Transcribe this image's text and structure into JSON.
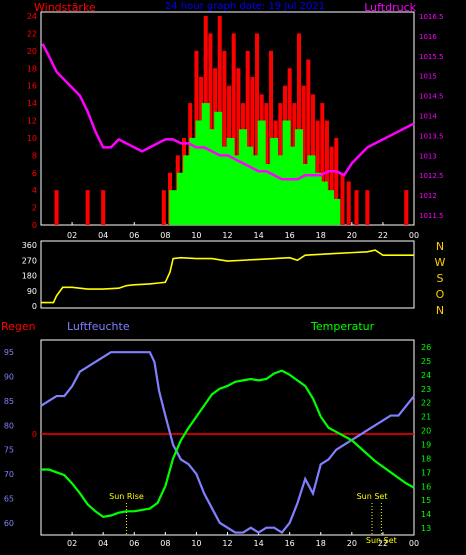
{
  "header": {
    "left_title": "Windstärke",
    "center_title": "24 hour graph date: 19 Jul 2021",
    "right_title": "Luftdruck"
  },
  "colors": {
    "background": "#000000",
    "frame": "#ffffff",
    "wind_gust": "#ff0000",
    "wind_avg": "#00ff00",
    "pressure": "#ff00ff",
    "direction": "#ffff00",
    "humidity": "#8080ff",
    "temperature": "#00ff00",
    "rain": "#ff0000",
    "dir_letters": "#ffcc00",
    "sun_marker": "#ffff00",
    "title_blue": "#0000ff"
  },
  "chart_data": [
    {
      "type": "bar",
      "title": "Windstärke / Luftdruck",
      "x_ticks": [
        "02",
        "04",
        "06",
        "08",
        "10",
        "12",
        "14",
        "16",
        "18",
        "20",
        "22",
        "00"
      ],
      "left_axis": {
        "label": "Windstärke",
        "ticks": [
          0,
          2,
          4,
          6,
          8,
          10,
          12,
          14,
          16,
          18,
          20,
          22,
          24
        ],
        "range": [
          0,
          24
        ]
      },
      "right_axis": {
        "label": "Luftdruck",
        "ticks": [
          "1011.5",
          "1012",
          "1012.5",
          "1013",
          "1013.5",
          "1014",
          "1014.5",
          "1015",
          "1015.5",
          "1016",
          "1016.5"
        ],
        "range": [
          1011.25,
          1016.5
        ]
      },
      "series": [
        {
          "name": "Luftdruck",
          "kind": "line",
          "x": [
            0.1,
            0.5,
            1,
            1.5,
            2,
            2.5,
            3,
            3.5,
            4,
            4.5,
            5,
            5.5,
            6,
            6.5,
            7,
            7.5,
            8,
            8.5,
            9,
            9.5,
            10,
            10.5,
            11,
            11.5,
            12,
            12.5,
            13,
            13.5,
            14,
            14.5,
            15,
            15.5,
            16,
            16.5,
            17,
            17.5,
            18,
            18.5,
            19,
            19.5,
            20,
            20.5,
            21,
            21.5,
            22,
            22.5,
            23,
            23.5,
            24
          ],
          "y": [
            1015.8,
            1015.5,
            1015.1,
            1014.9,
            1014.7,
            1014.5,
            1014.1,
            1013.6,
            1013.2,
            1013.2,
            1013.4,
            1013.3,
            1013.2,
            1013.1,
            1013.2,
            1013.3,
            1013.4,
            1013.4,
            1013.3,
            1013.3,
            1013.2,
            1013.2,
            1013.1,
            1013.0,
            1013.0,
            1012.9,
            1012.8,
            1012.7,
            1012.6,
            1012.6,
            1012.5,
            1012.4,
            1012.4,
            1012.4,
            1012.5,
            1012.5,
            1012.5,
            1012.6,
            1012.6,
            1012.5,
            1012.8,
            1013.0,
            1013.2,
            1013.3,
            1013.4,
            1013.5,
            1013.6,
            1013.7,
            1013.8
          ]
        },
        {
          "name": "Windspitzen",
          "kind": "bars",
          "x": [
            1,
            3,
            4,
            7.9,
            8.3,
            8.8,
            9.2,
            9.6,
            10.0,
            10.3,
            10.6,
            10.9,
            11.2,
            11.5,
            11.8,
            12.1,
            12.4,
            12.7,
            13.0,
            13.3,
            13.6,
            13.9,
            14.2,
            14.5,
            14.8,
            15.1,
            15.4,
            15.7,
            16.0,
            16.3,
            16.6,
            16.9,
            17.2,
            17.5,
            17.8,
            18.1,
            18.4,
            18.7,
            19.0,
            19.4,
            19.8,
            20.3,
            21.0,
            23.5
          ],
          "y": [
            4,
            4,
            4,
            4,
            6,
            8,
            10,
            14,
            20,
            17,
            24,
            22,
            18,
            24,
            20,
            16,
            22,
            18,
            14,
            20,
            17,
            22,
            15,
            14,
            20,
            12,
            14,
            16,
            18,
            14,
            22,
            16,
            19,
            15,
            12,
            14,
            12,
            9,
            10,
            6,
            5,
            4,
            4,
            4
          ]
        },
        {
          "name": "Windmittel",
          "kind": "bars",
          "x": [
            8.5,
            9.0,
            9.4,
            9.8,
            10.2,
            10.6,
            11.0,
            11.4,
            11.8,
            12.2,
            12.6,
            13.0,
            13.4,
            13.8,
            14.2,
            14.6,
            15.0,
            15.4,
            15.8,
            16.2,
            16.6,
            17.0,
            17.4,
            17.8,
            18.2,
            18.6,
            19.0
          ],
          "y": [
            4,
            6,
            8,
            10,
            12,
            14,
            11,
            13,
            9,
            10,
            8,
            11,
            9,
            8,
            12,
            7,
            10,
            8,
            12,
            9,
            11,
            7,
            8,
            6,
            5,
            4,
            3
          ]
        }
      ]
    },
    {
      "type": "line",
      "title": "Windrichtung",
      "left_axis": {
        "ticks": [
          0,
          90,
          180,
          270,
          360
        ],
        "range": [
          0,
          360
        ]
      },
      "direction_letters": [
        "N",
        "W",
        "S",
        "O",
        "N"
      ],
      "series": [
        {
          "name": "Windrichtung",
          "x": [
            0,
            0.8,
            1,
            1.4,
            2,
            3,
            4,
            5,
            5.5,
            6,
            7,
            7.5,
            8,
            8.3,
            8.5,
            9,
            10,
            11,
            12,
            13,
            14,
            15,
            16,
            16.5,
            17,
            18,
            19,
            20,
            21,
            21.5,
            22,
            23,
            24
          ],
          "y": [
            20,
            20,
            60,
            110,
            110,
            100,
            100,
            105,
            120,
            125,
            130,
            135,
            140,
            200,
            280,
            285,
            280,
            280,
            265,
            270,
            275,
            280,
            285,
            270,
            300,
            305,
            310,
            315,
            320,
            330,
            300,
            300,
            300
          ]
        }
      ]
    },
    {
      "type": "line",
      "title": "Regen / Luftfeuchte / Temperatur",
      "labels": {
        "rain": "Regen",
        "humidity": "Luftfeuchte",
        "temperature": "Temperatur"
      },
      "left_axis_rain": {
        "ticks": [
          "0"
        ],
        "value": 0
      },
      "left_axis_humidity": {
        "ticks": [
          60,
          65,
          70,
          75,
          80,
          85,
          90,
          95
        ],
        "range": [
          57.5,
          97.5
        ]
      },
      "right_axis_temperature": {
        "ticks": [
          13,
          14,
          15,
          16,
          17,
          18,
          19,
          20,
          21,
          22,
          23,
          24,
          25,
          26
        ],
        "range": [
          12.5,
          26.5
        ]
      },
      "x_ticks": [
        "02",
        "04",
        "06",
        "08",
        "10",
        "12",
        "14",
        "16",
        "18",
        "20",
        "22",
        "00"
      ],
      "annotations": [
        {
          "text": "Sun Rise",
          "x": 5.5
        },
        {
          "text": "Sun Set",
          "x": 21.3
        },
        {
          "text": "Sun Set",
          "x": 21.9
        }
      ],
      "series": [
        {
          "name": "Luftfeuchte",
          "x": [
            0,
            0.5,
            1,
            1.5,
            2,
            2.5,
            3,
            3.5,
            4,
            4.5,
            5,
            5.5,
            6,
            6.5,
            7,
            7.3,
            7.6,
            8,
            8.5,
            9,
            9.5,
            10,
            10.5,
            11,
            11.5,
            12,
            12.5,
            13,
            13.5,
            14,
            14.5,
            15,
            15.5,
            16,
            16.5,
            17,
            17.5,
            18,
            18.5,
            19,
            19.5,
            20,
            20.5,
            21,
            21.5,
            22,
            22.5,
            23,
            23.5,
            24
          ],
          "y": [
            84,
            85,
            86,
            86,
            88,
            91,
            92,
            93,
            94,
            95,
            95,
            95,
            95,
            95,
            95,
            93,
            87,
            82,
            76,
            73,
            72,
            70,
            66,
            63,
            60,
            59,
            58,
            58,
            59,
            58,
            59,
            59,
            58,
            60,
            64,
            69,
            66,
            72,
            73,
            75,
            76,
            77,
            78,
            79,
            80,
            81,
            82,
            82,
            84,
            86
          ]
        },
        {
          "name": "Temperatur",
          "x": [
            0,
            0.5,
            1,
            1.5,
            2,
            2.5,
            3,
            3.5,
            4,
            4.5,
            5,
            5.5,
            6,
            6.5,
            7,
            7.5,
            8,
            8.5,
            9,
            9.5,
            10,
            10.5,
            11,
            11.5,
            12,
            12.5,
            13,
            13.5,
            14,
            14.5,
            15,
            15.5,
            16,
            16.5,
            17,
            17.5,
            18,
            18.5,
            19,
            19.5,
            20,
            20.5,
            21,
            21.5,
            22,
            22.5,
            23,
            23.5,
            24
          ],
          "y": [
            17.2,
            17.2,
            17.0,
            16.8,
            16.2,
            15.5,
            14.7,
            14.2,
            13.8,
            13.9,
            14.1,
            14.2,
            14.2,
            14.3,
            14.4,
            14.8,
            16.0,
            18.0,
            19.3,
            20.2,
            21.0,
            21.8,
            22.6,
            23.0,
            23.2,
            23.5,
            23.6,
            23.7,
            23.6,
            23.7,
            24.1,
            24.3,
            24.0,
            23.6,
            23.2,
            22.3,
            21.0,
            20.2,
            19.9,
            19.6,
            19.3,
            18.8,
            18.3,
            17.8,
            17.4,
            17.0,
            16.6,
            16.2,
            15.9
          ]
        },
        {
          "name": "Regen",
          "y": [
            0
          ]
        }
      ]
    }
  ]
}
